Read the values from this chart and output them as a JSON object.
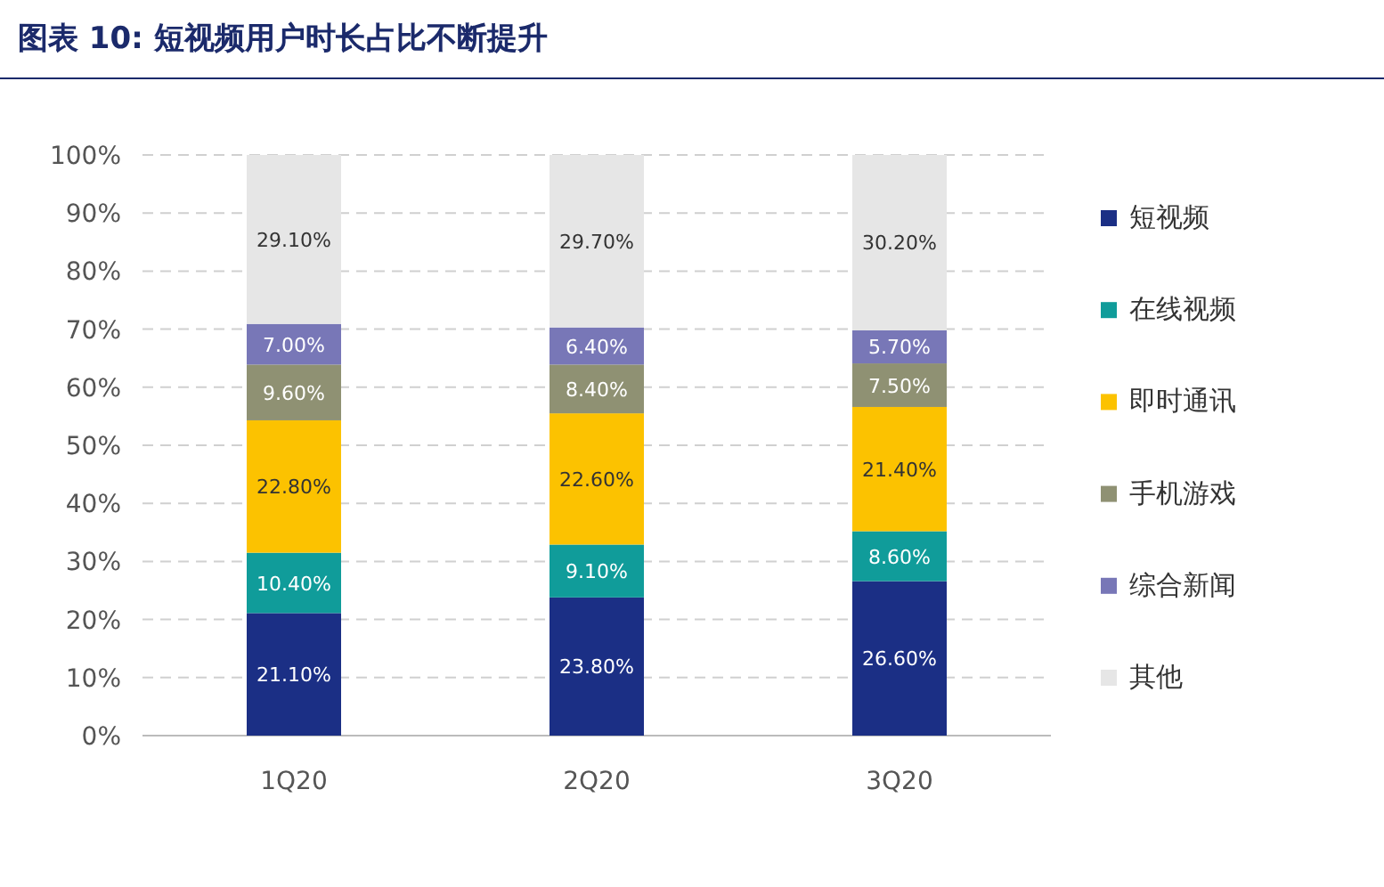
{
  "chart_data": {
    "type": "bar",
    "stacked": true,
    "title": "图表 10: 短视频用户时长占比不断提升",
    "categories": [
      "1Q20",
      "2Q20",
      "3Q20"
    ],
    "series": [
      {
        "name": "短视频",
        "color": "#1b2f85",
        "values": [
          21.1,
          23.8,
          26.6
        ],
        "value_labels": [
          "21.10%",
          "23.80%",
          "26.60%"
        ]
      },
      {
        "name": "在线视频",
        "color": "#109c9a",
        "values": [
          10.4,
          9.1,
          8.6
        ],
        "value_labels": [
          "10.40%",
          "9.10%",
          "8.60%"
        ]
      },
      {
        "name": "即时通讯",
        "color": "#fcc200",
        "values": [
          22.8,
          22.6,
          21.4
        ],
        "value_labels": [
          "22.80%",
          "22.60%",
          "21.40%"
        ]
      },
      {
        "name": "手机游戏",
        "color": "#8f9173",
        "values": [
          9.6,
          8.4,
          7.5
        ],
        "value_labels": [
          "9.60%",
          "8.40%",
          "7.50%"
        ]
      },
      {
        "name": "综合新闻",
        "color": "#7877b7",
        "values": [
          7.0,
          6.4,
          5.7
        ],
        "value_labels": [
          "7.00%",
          "6.40%",
          "5.70%"
        ]
      },
      {
        "name": "其他",
        "color": "#e6e6e6",
        "values": [
          29.1,
          29.7,
          30.2
        ],
        "value_labels": [
          "29.10%",
          "29.70%",
          "30.20%"
        ]
      }
    ],
    "ylim": [
      0,
      100
    ],
    "yticks": [
      {
        "value": 0,
        "label": "0%"
      },
      {
        "value": 10,
        "label": "10%"
      },
      {
        "value": 20,
        "label": "20%"
      },
      {
        "value": 30,
        "label": "30%"
      },
      {
        "value": 40,
        "label": "40%"
      },
      {
        "value": 50,
        "label": "50%"
      },
      {
        "value": 60,
        "label": "60%"
      },
      {
        "value": 70,
        "label": "70%"
      },
      {
        "value": 80,
        "label": "80%"
      },
      {
        "value": 90,
        "label": "90%"
      },
      {
        "value": 100,
        "label": "100%"
      }
    ],
    "grid": "y",
    "legend": "right"
  }
}
